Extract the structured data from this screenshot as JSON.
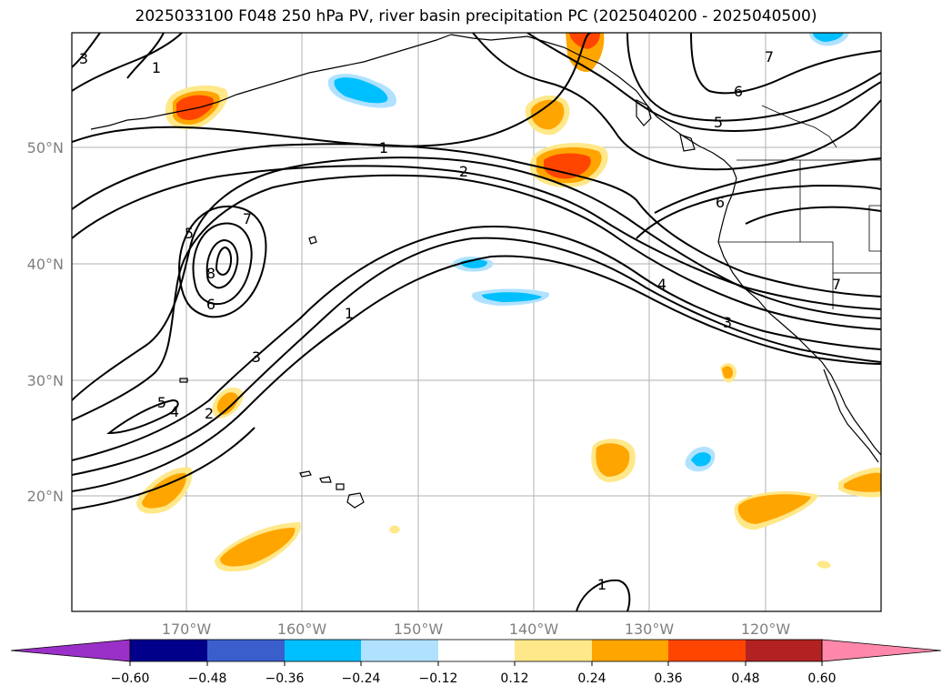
{
  "title": "2025033100 F048 250 hPa PV, river basin precipitation PC (2025040200 - 2025040500)",
  "map": {
    "lat_labels": [
      "50°N",
      "40°N",
      "30°N",
      "20°N"
    ],
    "lon_labels": [
      "170°W",
      "160°W",
      "150°W",
      "140°W",
      "130°W",
      "120°W"
    ],
    "contour_labels": [
      "1",
      "2",
      "3",
      "4",
      "5",
      "6",
      "7",
      "8"
    ]
  },
  "colorbar": {
    "ticks": [
      "−0.60",
      "−0.48",
      "−0.36",
      "−0.24",
      "−0.12",
      "0.12",
      "0.24",
      "0.36",
      "0.48",
      "0.60"
    ],
    "colors": {
      "under": "#9b30c8",
      "c1": "#00008b",
      "c2": "#3a5fcd",
      "c3": "#00bfff",
      "c4": "#b0e2ff",
      "c5": "#ffffff",
      "c6": "#ffe88a",
      "c7": "#ffa500",
      "c8": "#ff4500",
      "c9": "#b22222",
      "over": "#ff88aa"
    }
  }
}
